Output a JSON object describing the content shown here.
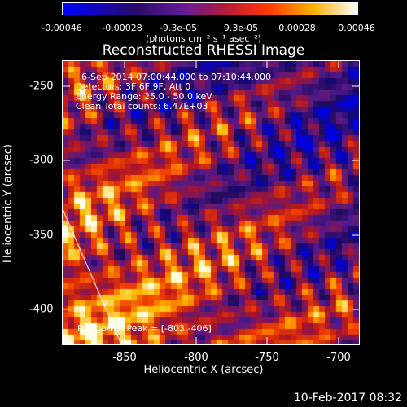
{
  "colorbar": {
    "ticks": [
      "-0.00046",
      "-0.00028",
      "-9.3e-05",
      "9.3e-05",
      "0.00028",
      "0.00046"
    ],
    "units": "(photons cm⁻² s⁻¹ asec⁻²)"
  },
  "title": "Reconstructed RHESSI Image",
  "annotations": {
    "time": "6-Sep-2014 07:00:44.000 to 07:10:44.000",
    "detectors": "Detectors: 3F 6F 9F, Att 0",
    "energy": "Energy Range: 25.0 - 50.0 keV",
    "method": "Clean     Total counts: 6.47E+03",
    "peak": "Position of Peak = [-803,-406]"
  },
  "axes": {
    "xlabel": "Heliocentric X (arcsec)",
    "ylabel": "Heliocentric Y (arcsec)",
    "xticks": [
      "-850",
      "-800",
      "-750",
      "-700"
    ],
    "yticks": [
      "-250",
      "-300",
      "-350",
      "-400"
    ]
  },
  "footer": {
    "timestamp": "10-Feb-2017 08:32"
  },
  "colors": {
    "colormap": [
      "#0000ff",
      "#3b0a6e",
      "#7a1fa0",
      "#cc1a1a",
      "#ff6a00",
      "#ffd000",
      "#ffffff"
    ]
  }
}
